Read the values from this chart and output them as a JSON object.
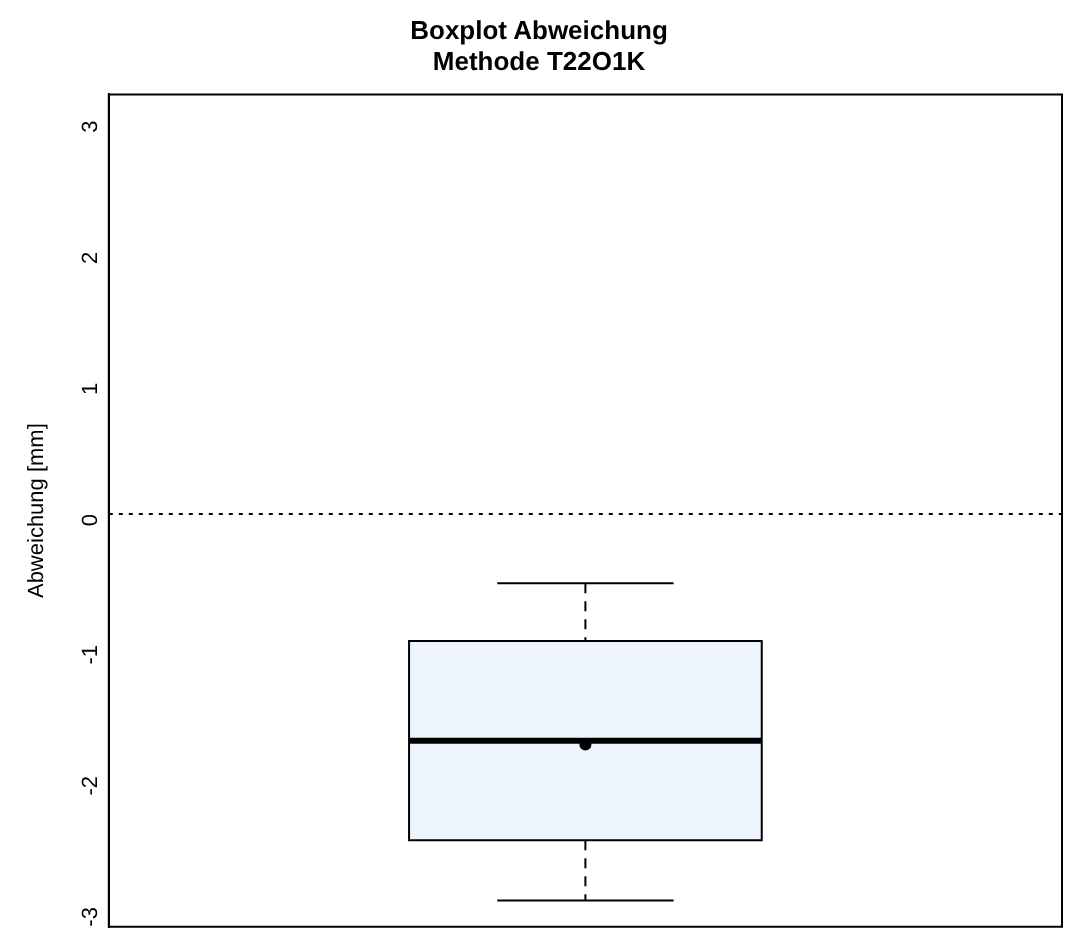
{
  "chart_data": {
    "type": "box",
    "title": "Boxplot Abweichung\nMethode T22O1K",
    "ylabel": "Abweichung [mm]",
    "categories": [
      null
    ],
    "boxes": [
      {
        "low": -2.95,
        "q1": -2.49,
        "median": -1.73,
        "q3": -0.97,
        "high": -0.53,
        "mean": -1.76
      }
    ],
    "color": "#eef4fc",
    "ylim": [
      -3.15,
      3.2
    ],
    "yticks": [
      -3,
      -2,
      -1,
      0,
      1,
      2,
      3
    ],
    "grid": false,
    "ref_lines": [
      {
        "axis": "y",
        "value": 0,
        "line_style": "dotted",
        "color": "#000000"
      }
    ]
  }
}
